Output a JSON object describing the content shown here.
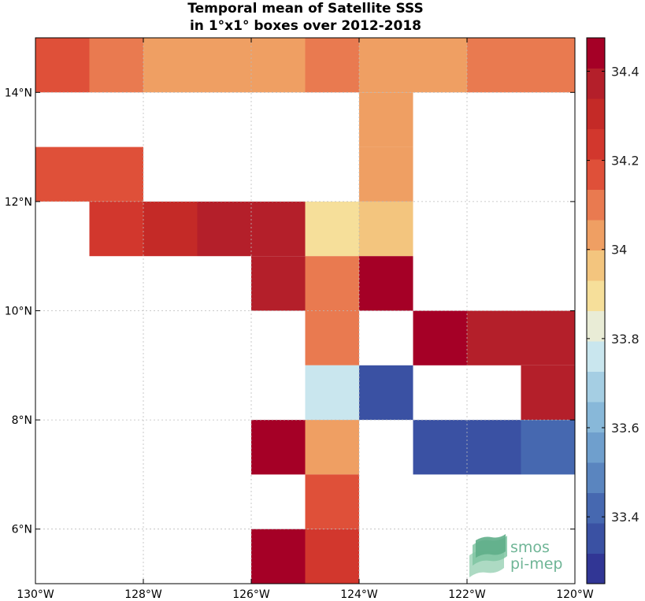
{
  "title_lines": [
    "Temporal mean of Satellite SSS",
    "in 1°x1° boxes over 2012-2018"
  ],
  "logo": {
    "line1": "smos",
    "line2": "pi-mep",
    "color": "#6fb596"
  },
  "chart_data": {
    "type": "heatmap",
    "title": "Temporal mean of Satellite SSS in 1°x1° boxes over 2012-2018",
    "xlim": [
      -130,
      -120
    ],
    "ylim": [
      5,
      15
    ],
    "x_ticks": [
      {
        "value": -130,
        "label": "130°W"
      },
      {
        "value": -128,
        "label": "128°W"
      },
      {
        "value": -126,
        "label": "126°W"
      },
      {
        "value": -124,
        "label": "124°W"
      },
      {
        "value": -122,
        "label": "122°W"
      },
      {
        "value": -120,
        "label": "120°W"
      }
    ],
    "y_ticks": [
      {
        "value": 6,
        "label": "6°N"
      },
      {
        "value": 8,
        "label": "8°N"
      },
      {
        "value": 10,
        "label": "10°N"
      },
      {
        "value": 12,
        "label": "12°N"
      },
      {
        "value": 14,
        "label": "14°N"
      }
    ],
    "grid": true,
    "colorbar": {
      "range": [
        33.25,
        34.475
      ],
      "ticks": [
        33.4,
        33.6,
        33.8,
        34,
        34.2,
        34.4
      ],
      "tick_labels": [
        "33.4",
        "33.6",
        "33.8",
        "34",
        "34.2",
        "34.4"
      ],
      "colors": [
        "#313695",
        "#3a51a3",
        "#4668b0",
        "#5a85bf",
        "#6f9fcd",
        "#88b8d9",
        "#a5cee3",
        "#c9e6ee",
        "#e9ecd6",
        "#f6df9a",
        "#f3c57e",
        "#ef9f63",
        "#e97a50",
        "#df5039",
        "#d2372d",
        "#c42a27",
        "#b41f2a",
        "#a50026"
      ],
      "position": "right"
    },
    "cells": [
      {
        "lon": -129.5,
        "lat": 14.5,
        "value": 34.15
      },
      {
        "lon": -128.5,
        "lat": 14.5,
        "value": 34.08
      },
      {
        "lon": -127.5,
        "lat": 14.5,
        "value": 34.02
      },
      {
        "lon": -126.5,
        "lat": 14.5,
        "value": 34.02
      },
      {
        "lon": -125.5,
        "lat": 14.5,
        "value": 34.02
      },
      {
        "lon": -124.5,
        "lat": 14.5,
        "value": 34.08
      },
      {
        "lon": -123.5,
        "lat": 14.5,
        "value": 34.02
      },
      {
        "lon": -122.5,
        "lat": 14.5,
        "value": 34.02
      },
      {
        "lon": -121.5,
        "lat": 14.5,
        "value": 34.08
      },
      {
        "lon": -120.5,
        "lat": 14.5,
        "value": 34.08
      },
      {
        "lon": -123.5,
        "lat": 13.5,
        "value": 34.02
      },
      {
        "lon": -129.5,
        "lat": 12.5,
        "value": 34.2
      },
      {
        "lon": -128.5,
        "lat": 12.5,
        "value": 34.2
      },
      {
        "lon": -123.5,
        "lat": 12.5,
        "value": 34.02
      },
      {
        "lon": -128.5,
        "lat": 11.5,
        "value": 34.27
      },
      {
        "lon": -127.5,
        "lat": 11.5,
        "value": 34.33
      },
      {
        "lon": -126.5,
        "lat": 11.5,
        "value": 34.4
      },
      {
        "lon": -125.5,
        "lat": 11.5,
        "value": 34.4
      },
      {
        "lon": -124.5,
        "lat": 11.5,
        "value": 33.92
      },
      {
        "lon": -123.5,
        "lat": 11.5,
        "value": 33.97
      },
      {
        "lon": -125.5,
        "lat": 10.5,
        "value": 34.4
      },
      {
        "lon": -124.5,
        "lat": 10.5,
        "value": 34.08
      },
      {
        "lon": -123.5,
        "lat": 10.5,
        "value": 34.45
      },
      {
        "lon": -124.5,
        "lat": 9.5,
        "value": 34.08
      },
      {
        "lon": -122.5,
        "lat": 9.5,
        "value": 34.45
      },
      {
        "lon": -121.5,
        "lat": 9.5,
        "value": 34.4
      },
      {
        "lon": -120.5,
        "lat": 9.5,
        "value": 34.4
      },
      {
        "lon": -124.5,
        "lat": 8.5,
        "value": 33.77
      },
      {
        "lon": -123.5,
        "lat": 8.5,
        "value": 33.32
      },
      {
        "lon": -120.5,
        "lat": 8.5,
        "value": 34.4
      },
      {
        "lon": -125.5,
        "lat": 7.5,
        "value": 34.45
      },
      {
        "lon": -124.5,
        "lat": 7.5,
        "value": 34.02
      },
      {
        "lon": -122.5,
        "lat": 7.5,
        "value": 33.37
      },
      {
        "lon": -121.5,
        "lat": 7.5,
        "value": 33.37
      },
      {
        "lon": -120.5,
        "lat": 7.5,
        "value": 33.42
      },
      {
        "lon": -124.5,
        "lat": 6.5,
        "value": 34.15
      },
      {
        "lon": -125.5,
        "lat": 5.5,
        "value": 34.45
      },
      {
        "lon": -124.5,
        "lat": 5.5,
        "value": 34.27
      }
    ]
  }
}
